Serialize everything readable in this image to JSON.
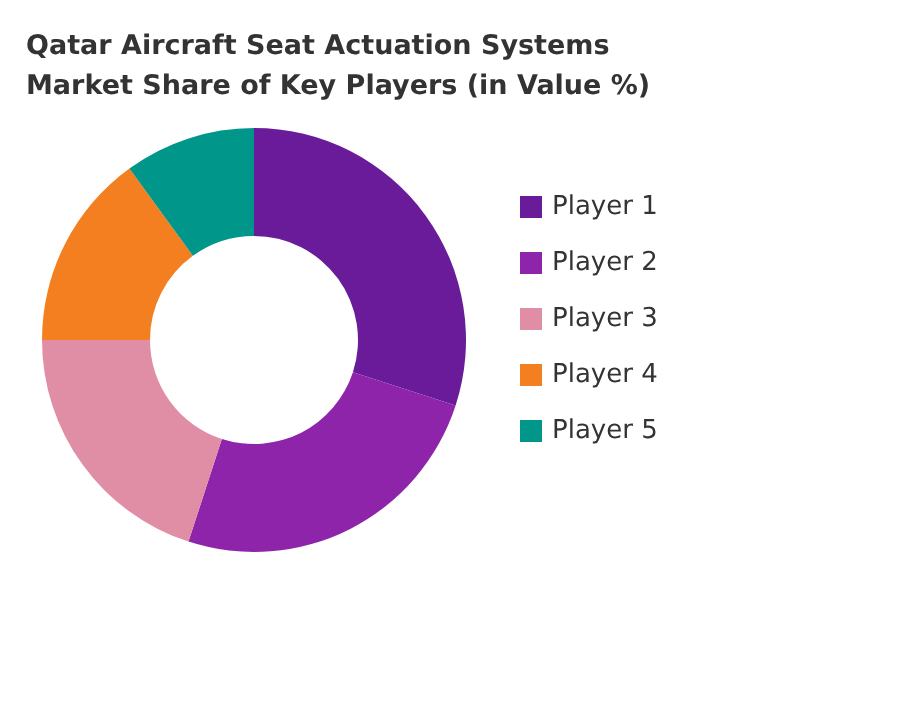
{
  "chart_data": {
    "type": "donut",
    "title": "Qatar Aircraft Seat Actuation Systems  Market Share of Key Players (in Value %)",
    "categories": [
      "Player 1",
      "Player 2",
      "Player 3",
      "Player 4",
      "Player 5"
    ],
    "values": [
      30,
      25,
      20,
      15,
      10
    ],
    "colors": [
      "#6a1b9a",
      "#8e24aa",
      "#e08ea6",
      "#f47f20",
      "#00968a"
    ],
    "legend": "right"
  }
}
